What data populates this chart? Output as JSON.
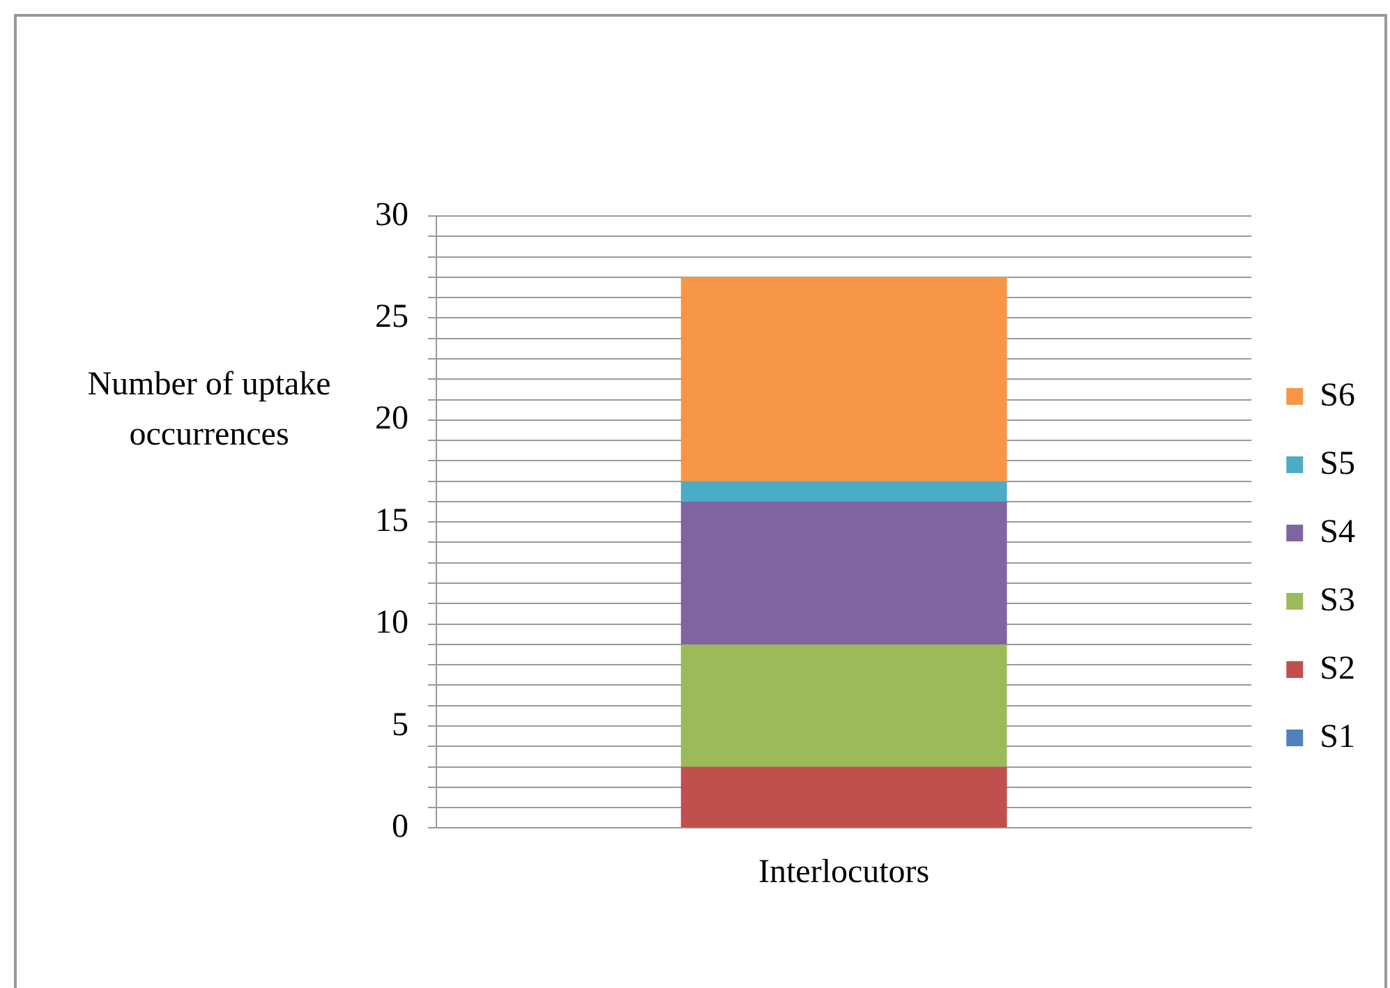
{
  "chart_data": {
    "type": "bar",
    "stacked": true,
    "categories": [
      "Interlocutors"
    ],
    "ylabel": "Number of uptake occurrences",
    "series": [
      {
        "name": "S1",
        "color": "#4f81bd",
        "values": [
          0
        ]
      },
      {
        "name": "S2",
        "color": "#c0504d",
        "values": [
          3
        ]
      },
      {
        "name": "S3",
        "color": "#9bbb59",
        "values": [
          6
        ]
      },
      {
        "name": "S4",
        "color": "#8064a2",
        "values": [
          7
        ]
      },
      {
        "name": "S5",
        "color": "#4bacc6",
        "values": [
          1
        ]
      },
      {
        "name": "S6",
        "color": "#f79646",
        "values": [
          10
        ]
      }
    ],
    "ylim": [
      0,
      30
    ],
    "yticks": [
      0,
      {
        "value": 1,
        "label": null
      },
      {
        "value": 2,
        "label": null
      },
      {
        "value": 3,
        "label": null
      },
      {
        "value": 4,
        "label": null
      },
      5,
      {
        "value": 6,
        "label": null
      },
      {
        "value": 7,
        "label": null
      },
      {
        "value": 8,
        "label": null
      },
      {
        "value": 9,
        "label": null
      },
      10,
      {
        "value": 11,
        "label": null
      },
      {
        "value": 12,
        "label": null
      },
      {
        "value": 13,
        "label": null
      },
      {
        "value": 14,
        "label": null
      },
      15,
      {
        "value": 16,
        "label": null
      },
      {
        "value": 17,
        "label": null
      },
      {
        "value": 18,
        "label": null
      },
      {
        "value": 19,
        "label": null
      },
      20,
      {
        "value": 21,
        "label": null
      },
      {
        "value": 22,
        "label": null
      },
      {
        "value": 23,
        "label": null
      },
      {
        "value": 24,
        "label": null
      },
      25,
      {
        "value": 26,
        "label": null
      },
      {
        "value": 27,
        "label": null
      },
      {
        "value": 28,
        "label": null
      },
      {
        "value": 29,
        "label": null
      },
      30
    ],
    "grid": "y",
    "legend": "right"
  }
}
